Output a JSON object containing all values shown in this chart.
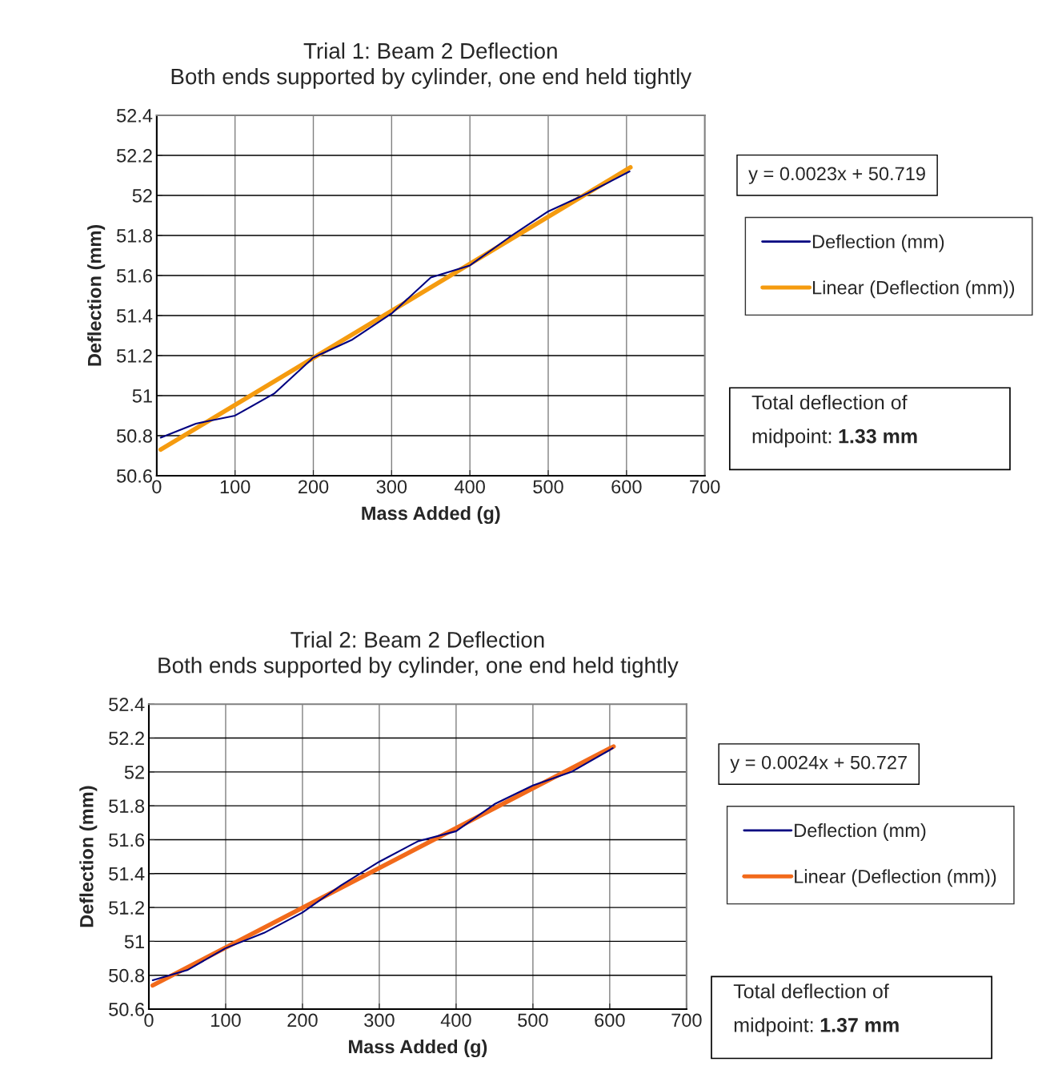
{
  "chart_data": [
    {
      "type": "line",
      "title": "Trial 1: Beam 2 Deflection",
      "subtitle": "Both ends supported by cylinder, one end held tightly",
      "xlabel": "Mass Added (g)",
      "ylabel": "Deflection (mm)",
      "series": [
        {
          "name": "Deflection (mm)",
          "color": "#000080",
          "x": [
            5,
            50,
            100,
            150,
            200,
            250,
            300,
            350,
            400,
            450,
            500,
            550,
            604
          ],
          "values": [
            50.79,
            50.86,
            50.9,
            51.01,
            51.19,
            51.28,
            51.41,
            51.59,
            51.65,
            51.79,
            51.92,
            52.01,
            52.12
          ]
        },
        {
          "name": "Linear (Deflection (mm))",
          "color": "#f59b0f",
          "x": [
            5,
            605
          ],
          "values": [
            50.73,
            52.14
          ]
        }
      ],
      "xlim": [
        0,
        700
      ],
      "ylim": [
        50.6,
        52.4
      ],
      "xticks": [
        0,
        100,
        200,
        300,
        400,
        500,
        600,
        700
      ],
      "yticks": [
        50.6,
        50.8,
        51,
        51.2,
        51.4,
        51.6,
        51.8,
        52,
        52.2,
        52.4
      ],
      "grid": true,
      "legend": "right",
      "annotations": [
        "y = 0.0023x + 50.719",
        "Total deflection of midpoint: 1.33 mm"
      ]
    },
    {
      "type": "line",
      "title": "Trial 2: Beam 2 Deflection",
      "subtitle": "Both ends supported by cylinder, one end held tightly",
      "xlabel": "Mass Added (g)",
      "ylabel": "Deflection (mm)",
      "series": [
        {
          "name": "Deflection (mm)",
          "color": "#000080",
          "x": [
            5,
            50,
            100,
            150,
            200,
            250,
            300,
            350,
            400,
            450,
            500,
            550,
            604
          ],
          "values": [
            50.77,
            50.83,
            50.96,
            51.05,
            51.17,
            51.33,
            51.47,
            51.59,
            51.65,
            51.81,
            51.92,
            52.0,
            52.14
          ]
        },
        {
          "name": "Linear (Deflection (mm))",
          "color": "#f26a1b",
          "x": [
            5,
            605
          ],
          "values": [
            50.74,
            52.15
          ]
        }
      ],
      "xlim": [
        0,
        700
      ],
      "ylim": [
        50.6,
        52.4
      ],
      "xticks": [
        0,
        100,
        200,
        300,
        400,
        500,
        600,
        700
      ],
      "yticks": [
        50.6,
        50.8,
        51,
        51.2,
        51.4,
        51.6,
        51.8,
        52,
        52.2,
        52.4
      ],
      "grid": true,
      "legend": "right",
      "annotations": [
        "y = 0.0024x + 50.727",
        "Total deflection of midpoint: 1.37 mm"
      ]
    }
  ]
}
